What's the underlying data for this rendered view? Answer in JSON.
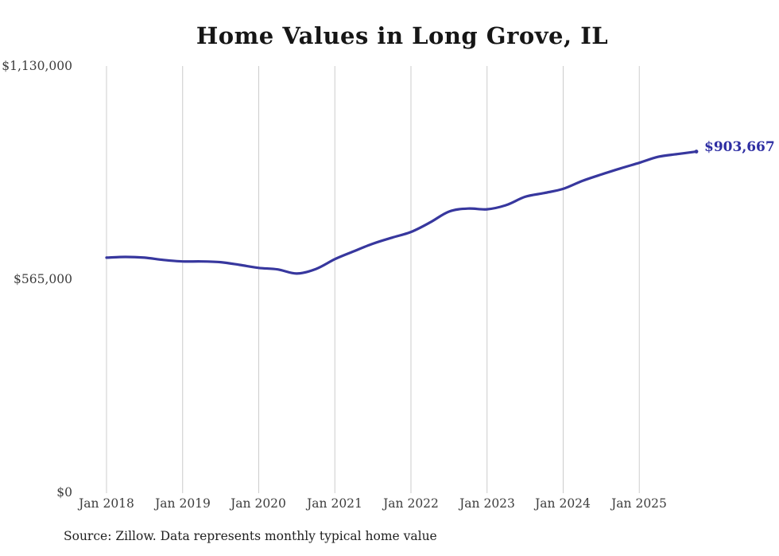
{
  "title": "Home Values in Long Grove, IL",
  "end_label": "$903,667",
  "source_note": "Source: Zillow. Data represents monthly typical home value",
  "colors": {
    "accent": "#37379e",
    "gridline": "#cccccc",
    "axis_text": "#3d3d3d",
    "title_text": "#161616"
  },
  "chart_data": {
    "type": "line",
    "title": "Home Values in Long Grove, IL",
    "xlabel": "",
    "ylabel": "",
    "ylim": [
      0,
      1130000
    ],
    "grid": "vertical-only",
    "legend": "none",
    "yticks": [
      {
        "value": 1130000,
        "label": "$1,130,000"
      },
      {
        "value": 565000,
        "label": "$565,000"
      },
      {
        "value": 0,
        "label": "$0"
      }
    ],
    "xticks": [
      {
        "month_index": 0,
        "label": "Jan 2018"
      },
      {
        "month_index": 12,
        "label": "Jan 2019"
      },
      {
        "month_index": 24,
        "label": "Jan 2020"
      },
      {
        "month_index": 36,
        "label": "Jan 2021"
      },
      {
        "month_index": 48,
        "label": "Jan 2022"
      },
      {
        "month_index": 60,
        "label": "Jan 2023"
      },
      {
        "month_index": 72,
        "label": "Jan 2024"
      },
      {
        "month_index": 84,
        "label": "Jan 2025"
      }
    ],
    "end_value": 903667,
    "end_value_label": "$903,667",
    "series": [
      {
        "name": "Monthly typical home value",
        "points": [
          [
            "2018-01",
            623000
          ],
          [
            "2018-04",
            625000
          ],
          [
            "2018-07",
            623000
          ],
          [
            "2018-10",
            617000
          ],
          [
            "2019-01",
            613000
          ],
          [
            "2019-04",
            613000
          ],
          [
            "2019-07",
            611000
          ],
          [
            "2019-10",
            604000
          ],
          [
            "2020-01",
            596000
          ],
          [
            "2020-04",
            592000
          ],
          [
            "2020-07",
            581000
          ],
          [
            "2020-10",
            593000
          ],
          [
            "2021-01",
            619000
          ],
          [
            "2021-04",
            640000
          ],
          [
            "2021-07",
            660000
          ],
          [
            "2021-10",
            676000
          ],
          [
            "2022-01",
            691000
          ],
          [
            "2022-04",
            716000
          ],
          [
            "2022-07",
            745000
          ],
          [
            "2022-10",
            753000
          ],
          [
            "2023-01",
            751000
          ],
          [
            "2023-04",
            762000
          ],
          [
            "2023-07",
            784000
          ],
          [
            "2023-10",
            794000
          ],
          [
            "2024-01",
            805000
          ],
          [
            "2024-04",
            826000
          ],
          [
            "2024-07",
            843000
          ],
          [
            "2024-10",
            859000
          ],
          [
            "2025-01",
            874000
          ],
          [
            "2025-04",
            890000
          ],
          [
            "2025-07",
            897000
          ],
          [
            "2025-10",
            903667
          ]
        ]
      }
    ]
  }
}
